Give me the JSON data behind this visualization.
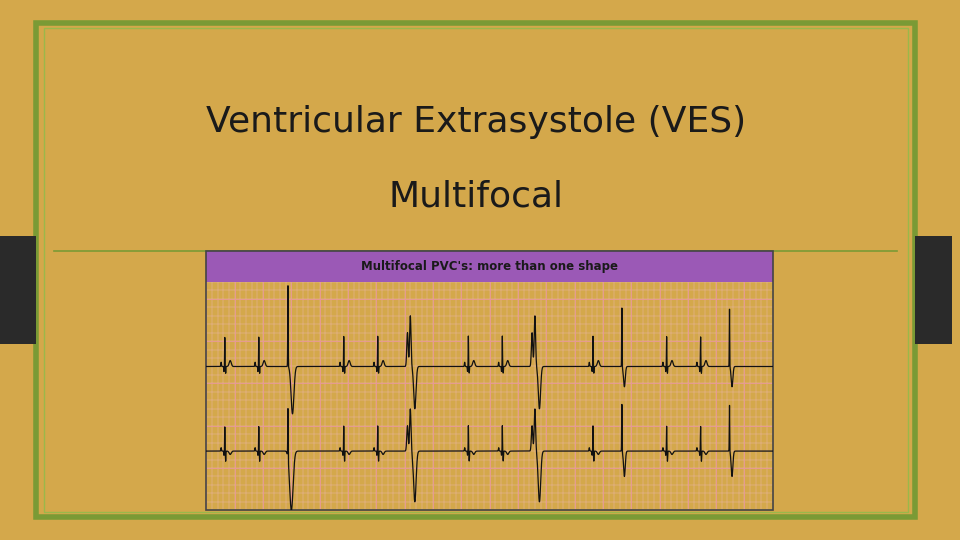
{
  "title_line1": "Ventricular Extrasystole (VES)",
  "title_line2": "Multifocal",
  "title_fontsize": 26,
  "title_color": "#1a1a1a",
  "background_color": "#f8f8f0",
  "outer_bg_color": "#d4a84b",
  "border_outer_color": "#7a9a35",
  "border_inner_color": "#9ab84a",
  "ecg_label": "Multifocal PVC's: more than one shape",
  "ecg_label_bg": "#9b59b6",
  "ecg_label_color": "#1a1a1a",
  "ecg_grid_minor_color": "#f0b8b8",
  "ecg_grid_major_color": "#e89898",
  "ecg_bg_color": "#fdf0f0",
  "separator_color": "#7a9a35",
  "dark_tab_color": "#2a2a2a",
  "ecg_line_color": "#111111",
  "shadow_color": "#aaaaaa"
}
